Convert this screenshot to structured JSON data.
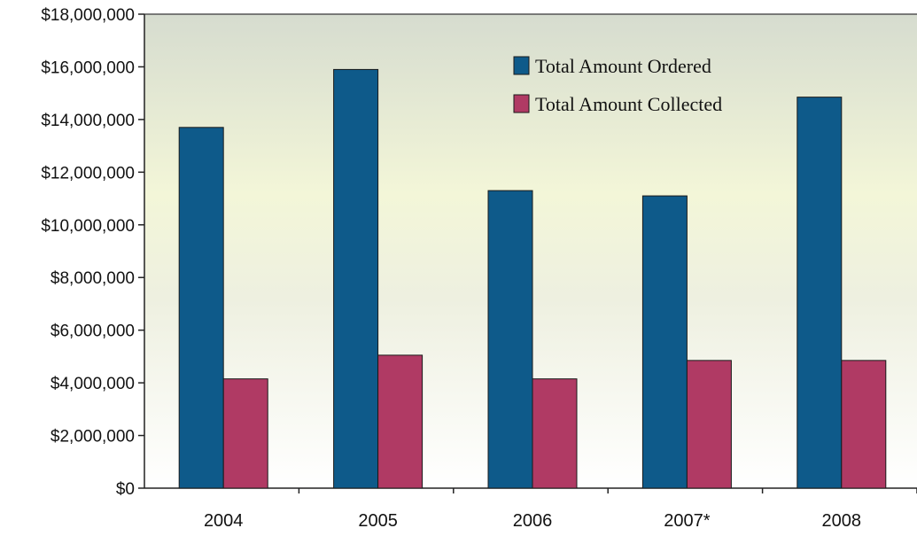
{
  "chart_data": {
    "type": "bar",
    "title": "",
    "xlabel": "",
    "ylabel": "",
    "categories": [
      "2004",
      "2005",
      "2006",
      "2007*",
      "2008"
    ],
    "series": [
      {
        "name": "Total Amount Ordered",
        "color": "#0e5a8a",
        "values": [
          13700000,
          15900000,
          11300000,
          11100000,
          14850000
        ]
      },
      {
        "name": "Total Amount Collected",
        "color": "#b03a64",
        "values": [
          4150000,
          5050000,
          4150000,
          4850000,
          4850000
        ]
      }
    ],
    "ylim": [
      0,
      18000000
    ],
    "yticks": [
      0,
      2000000,
      4000000,
      6000000,
      8000000,
      10000000,
      12000000,
      14000000,
      16000000,
      18000000
    ],
    "ytick_labels": [
      "$0",
      "$2,000,000",
      "$4,000,000",
      "$6,000,000",
      "$8,000,000",
      "$10,000,000",
      "$12,000,000",
      "$14,000,000",
      "$16,000,000",
      "$18,000,000"
    ],
    "grid": false,
    "legend_position": "top-right"
  }
}
